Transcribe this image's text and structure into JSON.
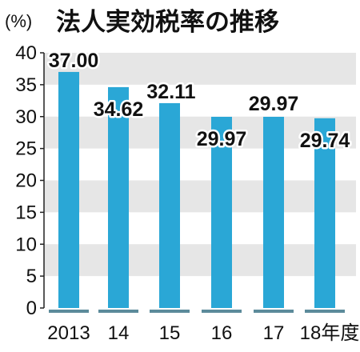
{
  "title": "法人実効税率の推移",
  "unit_label": "(%)",
  "colors": {
    "bar": "#2aa7d6",
    "band": "#e6e6e6",
    "axis": "#222222",
    "base_segment": "#5c8b9b"
  },
  "chart_data": {
    "type": "bar",
    "title": "法人実効税率の推移",
    "ylabel": "(%)",
    "xlabel": "",
    "categories": [
      "2013",
      "14",
      "15",
      "16",
      "17",
      "18年度"
    ],
    "values": [
      37.0,
      34.62,
      32.11,
      29.97,
      29.97,
      29.74
    ],
    "value_labels": [
      "37.00",
      "34.62",
      "32.11",
      "29.97",
      "29.97",
      "29.74"
    ],
    "ylim": [
      0,
      40
    ],
    "yticks": [
      "0",
      "5",
      "10",
      "15",
      "20",
      "25",
      "30",
      "35",
      "40"
    ],
    "grid": "alternating horizontal bands",
    "legend": "none"
  }
}
